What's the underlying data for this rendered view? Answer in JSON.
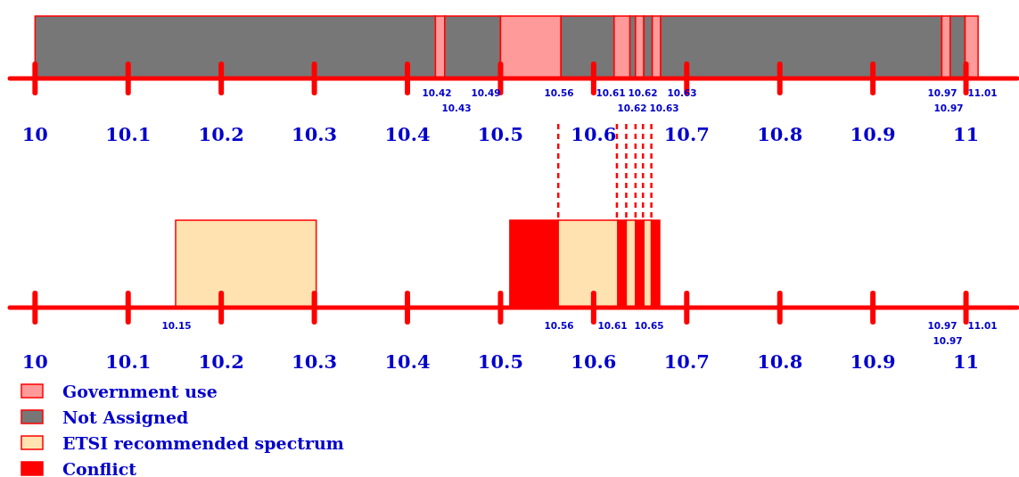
{
  "chart_data": [
    {
      "type": "bar",
      "orientation": "horizontal",
      "categories": [
        null
      ],
      "xlim": [
        9.97,
        11.055
      ],
      "xticks": [
        10,
        10.1,
        10.2,
        10.3,
        10.4,
        10.5,
        10.6,
        10.7,
        10.8,
        10.9,
        11
      ],
      "legend": "left",
      "series": [
        {
          "name": "Government use",
          "color": "#ff9a9a",
          "values": [
            0.01
          ],
          "base": [
            10.43
          ]
        },
        {
          "name": "Not Assigned",
          "color": "#777777",
          "values": [
            0.43
          ],
          "base": [
            10.0
          ]
        },
        {
          "color": "#777777",
          "values": [
            0.06
          ],
          "base": [
            10.44
          ]
        },
        {
          "color": "#ff9a9a",
          "values": [
            0.065
          ],
          "base": [
            10.5
          ]
        },
        {
          "color": "#777777",
          "values": [
            0.057
          ],
          "base": [
            10.565
          ]
        },
        {
          "color": "#ff9a9a",
          "values": [
            0.017
          ],
          "base": [
            10.622
          ]
        },
        {
          "color": "#777777",
          "values": [
            0.006
          ],
          "base": [
            10.639
          ]
        },
        {
          "color": "#ff9a9a",
          "values": [
            0.009
          ],
          "base": [
            10.645
          ]
        },
        {
          "color": "#777777",
          "values": [
            0.009
          ],
          "base": [
            10.654
          ]
        },
        {
          "color": "#ff9a9a",
          "values": [
            0.009
          ],
          "base": [
            10.663
          ]
        },
        {
          "color": "#777777",
          "values": [
            0.302
          ],
          "base": [
            10.672
          ]
        },
        {
          "color": "#ff9a9a",
          "values": [
            0.009
          ],
          "base": [
            10.974
          ]
        },
        {
          "color": "#777777",
          "values": [
            0.016
          ],
          "base": [
            10.983
          ]
        },
        {
          "color": "#ff9a9a",
          "values": [
            0.014
          ],
          "base": [
            10.999
          ]
        }
      ],
      "annotations": [
        "10.42",
        "10.43",
        "10.49",
        "10.56",
        "10.61",
        "10.62",
        "10.62",
        "10.63",
        "10.63",
        "10.97",
        "10.97",
        "11.01"
      ]
    },
    {
      "type": "bar",
      "orientation": "horizontal",
      "categories": [
        null
      ],
      "xlim": [
        9.97,
        11.055
      ],
      "xticks": [
        10,
        10.1,
        10.2,
        10.3,
        10.4,
        10.5,
        10.6,
        10.7,
        10.8,
        10.9,
        11
      ],
      "legend": "bottom left",
      "series": [
        {
          "name": "ETSI recommended spectrum",
          "color": "#ffe2b0",
          "values": [
            0.151
          ],
          "base": [
            10.151
          ]
        },
        {
          "name": "Conflict",
          "color": "#ff0000",
          "values": [
            0.052
          ],
          "base": [
            10.51
          ]
        },
        {
          "color": "#ffe2b0",
          "values": [
            0.064
          ],
          "base": [
            10.562
          ]
        },
        {
          "color": "#ff0000",
          "values": [
            0.009
          ],
          "base": [
            10.626
          ]
        },
        {
          "color": "#ffe2b0",
          "values": [
            0.01
          ],
          "base": [
            10.635
          ]
        },
        {
          "color": "#ff0000",
          "values": [
            0.009
          ],
          "base": [
            10.645
          ]
        },
        {
          "color": "#ffe2b0",
          "values": [
            0.008
          ],
          "base": [
            10.654
          ]
        },
        {
          "color": "#ff0000",
          "values": [
            0.009
          ],
          "base": [
            10.662
          ]
        }
      ],
      "ref_lines": [
        {
          "axis": "x",
          "value": 10.562,
          "color": "#ff0000",
          "line_style": "dashed"
        },
        {
          "axis": "x",
          "value": 10.625,
          "color": "#ff0000",
          "line_style": "dashed"
        },
        {
          "axis": "x",
          "value": 10.635,
          "color": "#ff0000",
          "line_style": "dashed"
        },
        {
          "axis": "x",
          "value": 10.645,
          "color": "#ff0000",
          "line_style": "dashed"
        },
        {
          "axis": "x",
          "value": 10.653,
          "color": "#ff0000",
          "line_style": "dashed"
        },
        {
          "axis": "x",
          "value": 10.662,
          "color": "#ff0000",
          "line_style": "dashed"
        }
      ],
      "annotations": [
        "10.15",
        "10.56",
        "10.61",
        "10.65",
        "10.97",
        "10.97",
        "11.01"
      ]
    }
  ]
}
